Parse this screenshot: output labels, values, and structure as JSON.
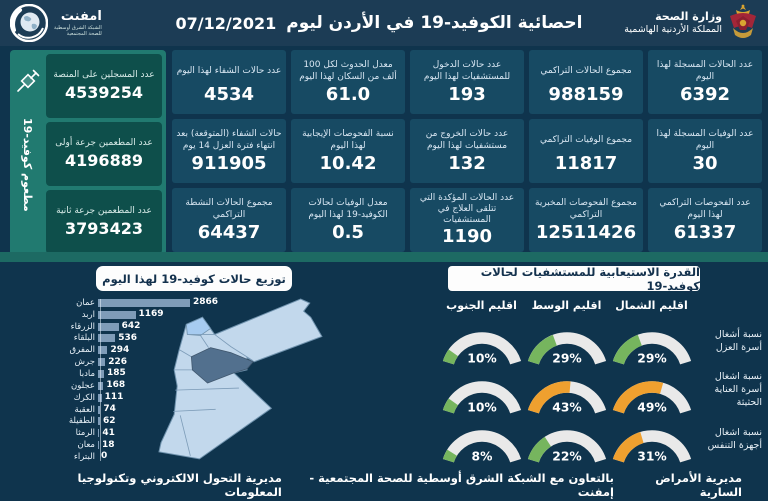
{
  "header": {
    "title": "احصائية الكوفيد-19 في الأردن ليوم",
    "date": "07/12/2021",
    "ministry": {
      "name": "وزارة الصحة",
      "subtitle": "المملكة الأردنية الهاشمية"
    },
    "emphnet": {
      "name": "امفنت",
      "line1": "الشبكة الشرق أوسطية",
      "line2": "للصحة المجتمعية"
    }
  },
  "stats_cards": [
    {
      "label": "عدد الحالات المسجلة لهذا اليوم",
      "value": "6392"
    },
    {
      "label": "مجموع الحالات التراكمي",
      "value": "988159"
    },
    {
      "label": "عدد حالات الدخول للمستشفيات لهذا اليوم",
      "value": "193"
    },
    {
      "label": "معدل الحدوث لكل 100 ألف من السكان لهذا اليوم",
      "value": "61.0"
    },
    {
      "label": "عدد حالات الشفاء لهذا اليوم",
      "value": "4534"
    },
    {
      "label": "عدد الوفيات المسجلة لهذا اليوم",
      "value": "30"
    },
    {
      "label": "مجموع الوفيات التراكمي",
      "value": "11817"
    },
    {
      "label": "عدد حالات الخروج من مستشفيات لهذا اليوم",
      "value": "132"
    },
    {
      "label": "نسبة الفحوصات الإيجابية لهذا اليوم",
      "value": "10.42"
    },
    {
      "label": "حالات الشفاء (المتوقعة) بعد انتهاء فترة العزل 14 يوم",
      "value": "911905"
    },
    {
      "label": "عدد الفحوصات التراكمي لهذا اليوم",
      "value": "61337"
    },
    {
      "label": "مجموع الفحوصات المخبرية التراكمي",
      "value": "12511426"
    },
    {
      "label": "عدد الحالات المؤكدة التي تتلقى العلاج في المستشفيات",
      "value": "1190"
    },
    {
      "label": "معدل الوفيات لحالات الكوفيد-19 لهذا اليوم",
      "value": "0.5"
    },
    {
      "label": "مجموع الحالات النشطة التراكمي",
      "value": "64437"
    }
  ],
  "vaccination": {
    "ribbon": "مطعوم كوفيد-19",
    "cards": [
      {
        "label": "عدد المسجلين على المنصة",
        "value": "4539254"
      },
      {
        "label": "عدد المطعمين جرعة أولى",
        "value": "4196889"
      },
      {
        "label": "عدد المطعمين جرعة ثانية",
        "value": "3793423"
      }
    ]
  },
  "chart_data": [
    {
      "type": "bar",
      "orientation": "horizontal",
      "title": "توزيع حالات كوفيد-19 لهذا اليوم",
      "categories": [
        "عمان",
        "اربد",
        "الزرقاء",
        "البلقاء",
        "المفرق",
        "جرش",
        "مادبا",
        "عجلون",
        "الكرك",
        "العقبة",
        "الطفيلة",
        "الرمثا",
        "معان",
        "البتراء"
      ],
      "values": [
        2866,
        1169,
        642,
        536,
        294,
        226,
        185,
        168,
        111,
        74,
        62,
        41,
        18,
        0
      ],
      "xlim": [
        0,
        2900
      ],
      "bar_color": "#7f9cb8",
      "value_labels": true
    },
    {
      "type": "gauge",
      "title": "القدرة الاستيعابية للمستشفيات لحالات كوفيد-19",
      "unit": "%",
      "columns": [
        "اقليم الشمال",
        "اقليم الوسط",
        "اقليم الجنوب"
      ],
      "rows": [
        {
          "label": "نسبة أشغال أسرة العزل",
          "values": [
            29,
            29,
            10
          ],
          "colors": [
            "green",
            "green",
            "green"
          ]
        },
        {
          "label": "نسبة اشغال أسرة العناية الحثيثة",
          "values": [
            49,
            43,
            10
          ],
          "colors": [
            "orange",
            "orange",
            "green"
          ]
        },
        {
          "label": "نسبة اشغال أجهزة التنفس",
          "values": [
            31,
            22,
            8
          ],
          "colors": [
            "orange",
            "green",
            "green"
          ]
        }
      ],
      "color_map": {
        "green": "#76b55e",
        "orange": "#efa02f"
      },
      "track_color": "#e9e9e9",
      "range": [
        0,
        100
      ]
    }
  ],
  "footer": {
    "right": "مديرية الأمراض السارية",
    "center": "بالتعاون مع الشبكة الشرق أوسطية للصحة المجتمعية - إمفنت",
    "left": "مديرية التحول الالكتروني وتكنولوجيا المعلومات"
  },
  "colors": {
    "page_bg": "#0f344d",
    "header_bg": "#1c3c55",
    "card_bg": "#174a63",
    "vax_panel_bg": "#217a70",
    "vax_card_bg": "#0e4f4b",
    "separator": "#1d6a63",
    "bar": "#7f9cb8",
    "gauge_green": "#76b55e",
    "gauge_orange": "#efa02f",
    "map_base": "#c2d8ec",
    "map_amman": "#52708e"
  }
}
